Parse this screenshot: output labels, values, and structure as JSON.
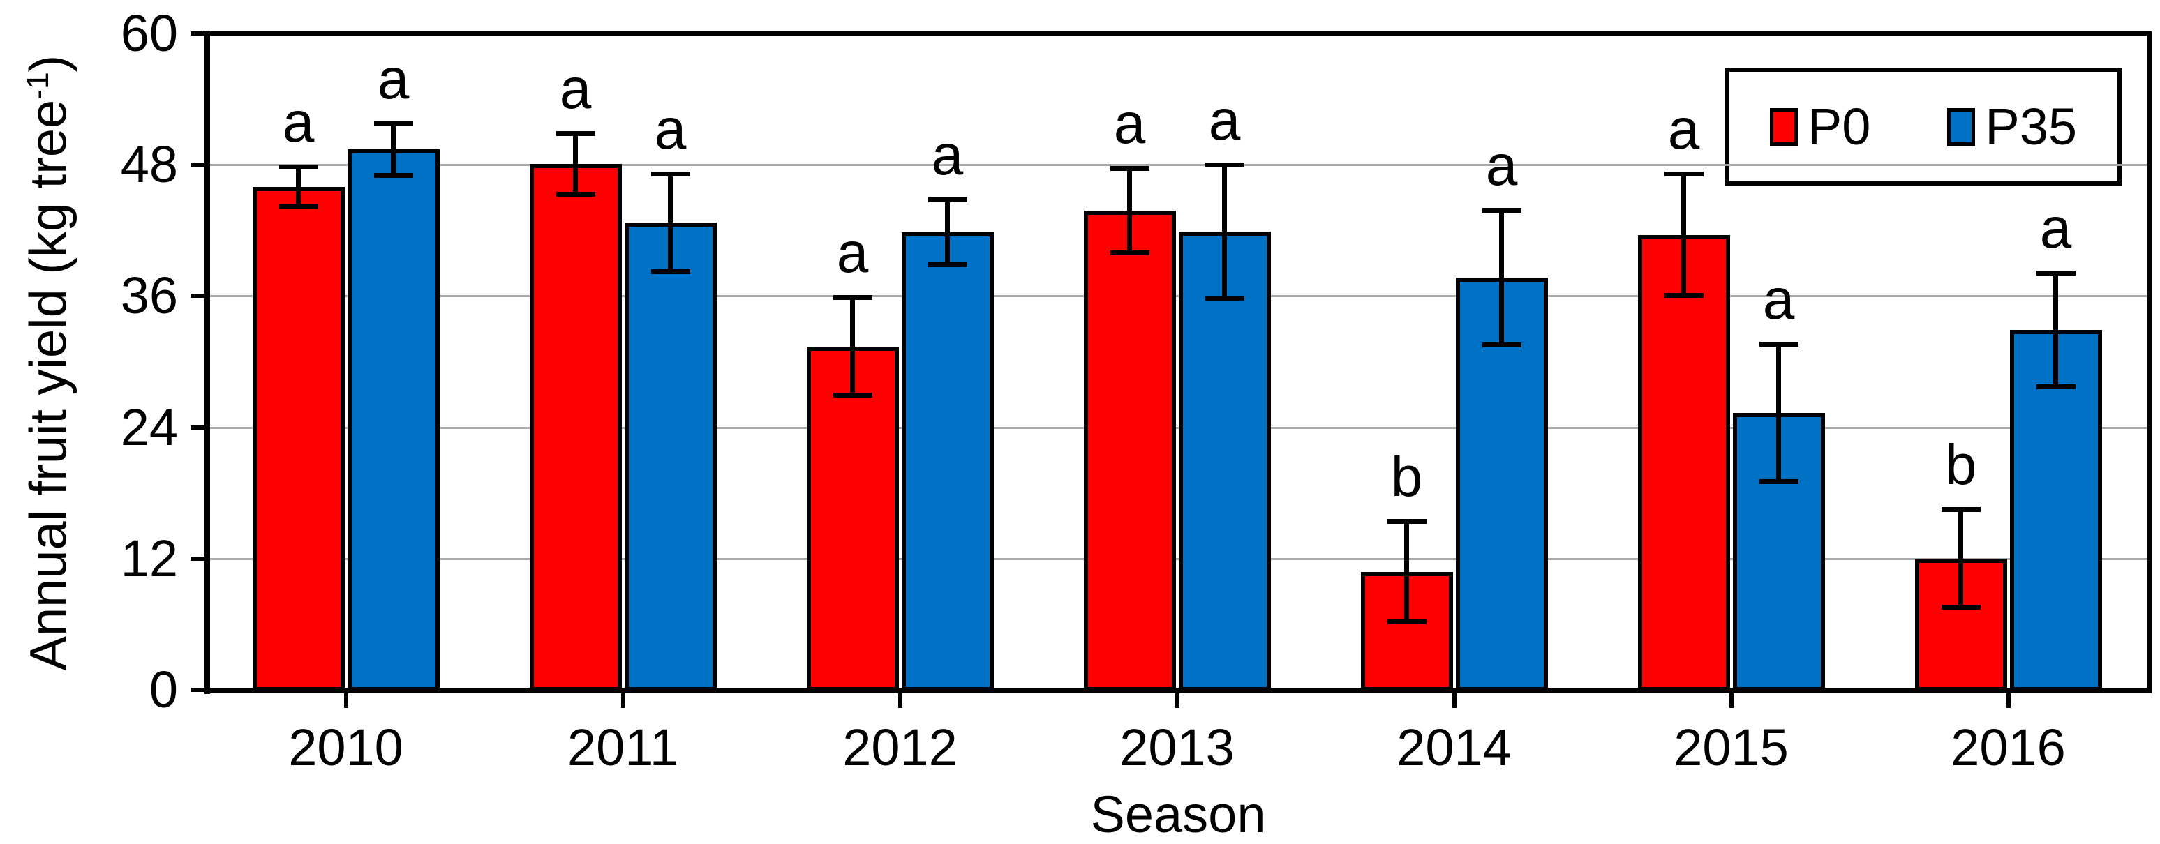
{
  "chart_data": {
    "type": "bar",
    "title": "",
    "xlabel": "Season",
    "ylabel_main": "Annual fruit yield (kg tree",
    "ylabel_sup": "-1",
    "ylabel_end": ")",
    "categories": [
      "2010",
      "2011",
      "2012",
      "2013",
      "2014",
      "2015",
      "2016"
    ],
    "series": [
      {
        "name": "P0",
        "color": "#FF0000",
        "values": [
          46.0,
          48.1,
          31.4,
          43.8,
          10.8,
          41.6,
          12.0
        ],
        "errors": [
          1.8,
          2.8,
          4.5,
          3.9,
          4.6,
          5.6,
          4.5
        ],
        "letters": [
          "a",
          "a",
          "a",
          "a",
          "b",
          "a",
          "b"
        ]
      },
      {
        "name": "P35",
        "color": "#0072C6",
        "values": [
          49.4,
          42.7,
          41.8,
          41.9,
          37.7,
          25.3,
          32.9
        ],
        "errors": [
          2.4,
          4.5,
          3.0,
          6.1,
          6.2,
          6.3,
          5.2
        ],
        "letters": [
          "a",
          "a",
          "a",
          "a",
          "a",
          "a",
          "a"
        ]
      }
    ],
    "ylim": [
      0,
      60
    ],
    "yticks": [
      0,
      12,
      24,
      36,
      48,
      60
    ],
    "grid": true,
    "legend_position": "top-right"
  },
  "colors": {
    "gridline": "#A9A9A9",
    "axis": "#000000",
    "background": "#FFFFFF"
  }
}
